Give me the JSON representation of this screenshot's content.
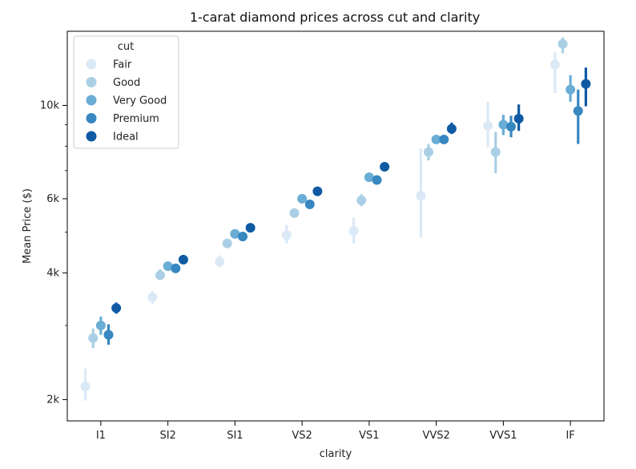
{
  "chart_data": {
    "type": "scatter",
    "title": "1-carat diamond prices across cut and clarity",
    "xlabel": "clarity",
    "ylabel": "Mean Price ($)",
    "yscale": "log",
    "ylim": [
      1780,
      15000
    ],
    "y_ticks": [
      {
        "value": 2000,
        "label": "2k"
      },
      {
        "value": 4000,
        "label": "4k"
      },
      {
        "value": 6000,
        "label": "6k"
      },
      {
        "value": 10000,
        "label": "10k"
      }
    ],
    "y_minor_ticks": [
      3000,
      5000,
      7000,
      8000,
      9000
    ],
    "categories": [
      "I1",
      "SI2",
      "SI1",
      "VS2",
      "VS1",
      "VVS2",
      "VVS1",
      "IF"
    ],
    "legend": {
      "title": "cut",
      "placement": "top-left"
    },
    "grid": false,
    "series": [
      {
        "name": "Fair",
        "color": "#dbe9f6",
        "values": [
          2150,
          3500,
          4250,
          4920,
          5030,
          6100,
          8950,
          12500
        ],
        "ci_low": [
          1990,
          3380,
          4120,
          4700,
          4700,
          4850,
          7950,
          10700
        ],
        "ci_high": [
          2370,
          3620,
          4400,
          5200,
          5400,
          7900,
          10200,
          13400
        ]
      },
      {
        "name": "Good",
        "color": "#aacfe5",
        "values": [
          2800,
          3950,
          4700,
          5550,
          5950,
          7750,
          7750,
          14000
        ],
        "ci_low": [
          2650,
          3850,
          4620,
          5430,
          5760,
          7400,
          6900,
          13300
        ],
        "ci_high": [
          2950,
          4080,
          4780,
          5680,
          6150,
          8100,
          8650,
          14500
        ]
      },
      {
        "name": "Very Good",
        "color": "#6aadd5",
        "values": [
          3000,
          4150,
          4950,
          6000,
          6750,
          8300,
          9000,
          10900
        ],
        "ci_low": [
          2850,
          4070,
          4880,
          5900,
          6600,
          8100,
          8500,
          10200
        ],
        "ci_high": [
          3150,
          4230,
          5030,
          6100,
          6900,
          8500,
          9500,
          11800
        ]
      },
      {
        "name": "Premium",
        "color": "#3787c0",
        "values": [
          2850,
          4100,
          4880,
          5820,
          6650,
          8300,
          8900,
          9700
        ],
        "ci_low": [
          2700,
          4020,
          4800,
          5720,
          6500,
          8100,
          8400,
          8100
        ],
        "ci_high": [
          3020,
          4180,
          4960,
          5920,
          6800,
          8500,
          9450,
          10900
        ]
      },
      {
        "name": "Ideal",
        "color": "#0f5aa3",
        "values": [
          3300,
          4300,
          5120,
          6250,
          7150,
          8800,
          9300,
          11250
        ],
        "ci_low": [
          3200,
          4250,
          5050,
          6180,
          7000,
          8550,
          8700,
          9950
        ],
        "ci_high": [
          3400,
          4360,
          5200,
          6330,
          7300,
          9100,
          10050,
          12300
        ]
      }
    ]
  }
}
